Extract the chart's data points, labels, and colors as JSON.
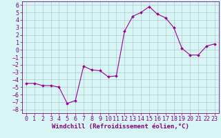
{
  "x": [
    0,
    1,
    2,
    3,
    4,
    5,
    6,
    7,
    8,
    9,
    10,
    11,
    12,
    13,
    14,
    15,
    16,
    17,
    18,
    19,
    20,
    21,
    22,
    23
  ],
  "y": [
    -4.5,
    -4.5,
    -4.8,
    -4.8,
    -5.0,
    -7.2,
    -6.8,
    -2.2,
    -2.7,
    -2.8,
    -3.6,
    -3.5,
    2.5,
    4.5,
    5.0,
    5.8,
    4.8,
    4.3,
    3.0,
    0.2,
    -0.7,
    -0.7,
    0.5,
    0.8
  ],
  "line_color": "#990099",
  "marker": "D",
  "marker_size": 2,
  "bg_color": "#d8f5f5",
  "grid_color": "#b0c8c8",
  "axis_color": "#800080",
  "tick_color": "#800080",
  "xlabel": "Windchill (Refroidissement éolien,°C)",
  "xlim": [
    -0.5,
    23.5
  ],
  "ylim": [
    -8.5,
    6.5
  ],
  "yticks": [
    -8,
    -7,
    -6,
    -5,
    -4,
    -3,
    -2,
    -1,
    0,
    1,
    2,
    3,
    4,
    5,
    6
  ],
  "xticks": [
    0,
    1,
    2,
    3,
    4,
    5,
    6,
    7,
    8,
    9,
    10,
    11,
    12,
    13,
    14,
    15,
    16,
    17,
    18,
    19,
    20,
    21,
    22,
    23
  ],
  "font_size": 6,
  "label_font_size": 6.5
}
